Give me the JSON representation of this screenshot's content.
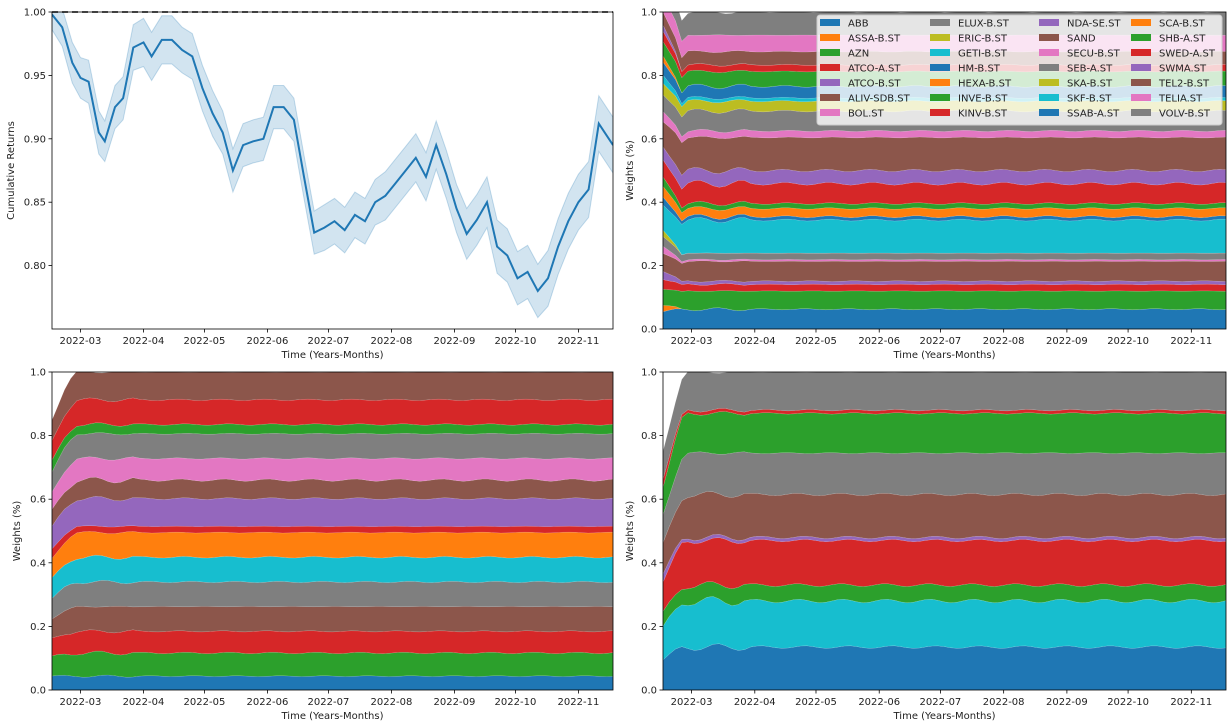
{
  "chart_data": [
    {
      "type": "line",
      "xlabel": "Time (Years-Months)",
      "ylabel": "Cumulative Returns",
      "ylim": [
        0.75,
        1.0
      ],
      "yticks": [
        "0.80",
        "0.85",
        "0.90",
        "0.95",
        "1.00"
      ],
      "xlim": [
        "2022-02-15",
        "2022-11-18"
      ],
      "xticks": [
        "2022-03",
        "2022-04",
        "2022-05",
        "2022-06",
        "2022-07",
        "2022-08",
        "2022-09",
        "2022-10",
        "2022-11"
      ],
      "reference_line": {
        "y": 1.0,
        "style": "dashed",
        "color": "#000000"
      },
      "line_color": "#1f77b4",
      "band_color": "#1f77b4",
      "series": [
        {
          "x": [
            "2022-02-15",
            "2022-02-20",
            "2022-02-25",
            "2022-03-01",
            "2022-03-05",
            "2022-03-10",
            "2022-03-13",
            "2022-03-18",
            "2022-03-22",
            "2022-03-27",
            "2022-04-01",
            "2022-04-05",
            "2022-04-10",
            "2022-04-15",
            "2022-04-20",
            "2022-04-25",
            "2022-04-30",
            "2022-05-05",
            "2022-05-10",
            "2022-05-15",
            "2022-05-20",
            "2022-05-25",
            "2022-05-30",
            "2022-06-04",
            "2022-06-09",
            "2022-06-14",
            "2022-06-19",
            "2022-06-24",
            "2022-06-29",
            "2022-07-04",
            "2022-07-09",
            "2022-07-14",
            "2022-07-19",
            "2022-07-24",
            "2022-07-29",
            "2022-08-03",
            "2022-08-08",
            "2022-08-13",
            "2022-08-18",
            "2022-08-23",
            "2022-08-28",
            "2022-09-02",
            "2022-09-07",
            "2022-09-12",
            "2022-09-17",
            "2022-09-22",
            "2022-09-27",
            "2022-10-02",
            "2022-10-07",
            "2022-10-12",
            "2022-10-17",
            "2022-10-22",
            "2022-10-27",
            "2022-11-01",
            "2022-11-06",
            "2022-11-11",
            "2022-11-18"
          ],
          "y": [
            0.998,
            0.988,
            0.96,
            0.948,
            0.945,
            0.905,
            0.898,
            0.925,
            0.932,
            0.972,
            0.976,
            0.965,
            0.978,
            0.978,
            0.97,
            0.965,
            0.94,
            0.92,
            0.905,
            0.875,
            0.895,
            0.898,
            0.9,
            0.925,
            0.925,
            0.915,
            0.87,
            0.826,
            0.83,
            0.835,
            0.828,
            0.84,
            0.835,
            0.85,
            0.855,
            0.865,
            0.875,
            0.885,
            0.87,
            0.895,
            0.872,
            0.845,
            0.825,
            0.836,
            0.85,
            0.815,
            0.808,
            0.79,
            0.795,
            0.78,
            0.79,
            0.815,
            0.835,
            0.85,
            0.86,
            0.912,
            0.895
          ],
          "band": [
            0.012,
            0.015,
            0.016,
            0.016,
            0.017,
            0.017,
            0.016,
            0.017,
            0.017,
            0.018,
            0.019,
            0.019,
            0.019,
            0.019,
            0.018,
            0.018,
            0.018,
            0.018,
            0.017,
            0.017,
            0.017,
            0.017,
            0.017,
            0.017,
            0.017,
            0.017,
            0.017,
            0.017,
            0.018,
            0.018,
            0.018,
            0.018,
            0.018,
            0.018,
            0.019,
            0.019,
            0.019,
            0.019,
            0.019,
            0.019,
            0.019,
            0.019,
            0.02,
            0.02,
            0.02,
            0.021,
            0.021,
            0.021,
            0.021,
            0.021,
            0.022,
            0.022,
            0.022,
            0.022,
            0.022,
            0.022,
            0.022
          ]
        }
      ]
    },
    {
      "type": "area",
      "stacked": true,
      "xlabel": "Time (Years-Months)",
      "ylabel": "Weights (%)",
      "ylim": [
        0.0,
        1.0
      ],
      "yticks": [
        "0.0",
        "0.2",
        "0.4",
        "0.6",
        "0.8",
        "1.0"
      ],
      "xlim": [
        "2022-02-15",
        "2022-11-18"
      ],
      "xticks": [
        "2022-03",
        "2022-04",
        "2022-05",
        "2022-06",
        "2022-07",
        "2022-08",
        "2022-09",
        "2022-10",
        "2022-11"
      ],
      "legend_position": "top-right",
      "series": [
        {
          "name": "ABB",
          "color": "#1f77b4",
          "weight": 0.06
        },
        {
          "name": "ASSA-B.ST",
          "color": "#ff7f0e",
          "weight": 0.0
        },
        {
          "name": "AZN",
          "color": "#2ca02c",
          "weight": 0.055
        },
        {
          "name": "ATCO-A.ST",
          "color": "#d62728",
          "weight": 0.02
        },
        {
          "name": "ATCO-B.ST",
          "color": "#9467bd",
          "weight": 0.01
        },
        {
          "name": "ALIV-SDB.ST",
          "color": "#8c564b",
          "weight": 0.06
        },
        {
          "name": "BOL.ST",
          "color": "#e377c2",
          "weight": 0.005
        },
        {
          "name": "ELUX-B.ST",
          "color": "#7f7f7f",
          "weight": 0.02
        },
        {
          "name": "ERIC-B.ST",
          "color": "#bcbd22",
          "weight": 0.0
        },
        {
          "name": "GETI-B.ST",
          "color": "#17becf",
          "weight": 0.1
        },
        {
          "name": "HM-B.ST",
          "color": "#1f77b4",
          "weight": 0.01
        },
        {
          "name": "HEXA-B.ST",
          "color": "#ff7f0e",
          "weight": 0.025
        },
        {
          "name": "INVE-B.ST",
          "color": "#2ca02c",
          "weight": 0.015
        },
        {
          "name": "KINV-B.ST",
          "color": "#d62728",
          "weight": 0.06
        },
        {
          "name": "NDA-SE.ST",
          "color": "#9467bd",
          "weight": 0.04
        },
        {
          "name": "SAND",
          "color": "#8c564b",
          "weight": 0.1
        },
        {
          "name": "SECU-B.ST",
          "color": "#e377c2",
          "weight": 0.02
        },
        {
          "name": "SEB-A.ST",
          "color": "#7f7f7f",
          "weight": 0.06
        },
        {
          "name": "SKA-B.ST",
          "color": "#bcbd22",
          "weight": 0.03
        },
        {
          "name": "SKF-B.ST",
          "color": "#17becf",
          "weight": 0.01
        },
        {
          "name": "SSAB-A.ST",
          "color": "#1f77b4",
          "weight": 0.035
        },
        {
          "name": "SCA-B.ST",
          "color": "#ff7f0e",
          "weight": 0.0
        },
        {
          "name": "SHB-A.ST",
          "color": "#2ca02c",
          "weight": 0.045
        },
        {
          "name": "SWED-A.ST",
          "color": "#d62728",
          "weight": 0.02
        },
        {
          "name": "SWMA.ST",
          "color": "#9467bd",
          "weight": 0.0
        },
        {
          "name": "TEL2-B.ST",
          "color": "#8c564b",
          "weight": 0.04
        },
        {
          "name": "TELIA.ST",
          "color": "#e377c2",
          "weight": 0.05
        },
        {
          "name": "VOLV-B.ST",
          "color": "#7f7f7f",
          "weight": 0.07
        }
      ]
    },
    {
      "type": "area",
      "stacked": true,
      "xlabel": "Time (Years-Months)",
      "ylabel": "Weights (%)",
      "ylim": [
        0.0,
        1.0
      ],
      "yticks": [
        "0.0",
        "0.2",
        "0.4",
        "0.6",
        "0.8",
        "1.0"
      ],
      "xlim": [
        "2022-02-15",
        "2022-11-18"
      ],
      "xticks": [
        "2022-03",
        "2022-04",
        "2022-05",
        "2022-06",
        "2022-07",
        "2022-08",
        "2022-09",
        "2022-10",
        "2022-11"
      ],
      "series": [
        {
          "name": "ABB",
          "color": "#1f77b4",
          "weight": 0.045
        },
        {
          "name": "AZN",
          "color": "#2ca02c",
          "weight": 0.075
        },
        {
          "name": "ATCO-A.ST",
          "color": "#d62728",
          "weight": 0.07
        },
        {
          "name": "ALIV-SDB.ST",
          "color": "#8c564b",
          "weight": 0.08
        },
        {
          "name": "ELUX-B.ST",
          "color": "#7f7f7f",
          "weight": 0.08
        },
        {
          "name": "GETI-B.ST",
          "color": "#17becf",
          "weight": 0.08
        },
        {
          "name": "HEXA-B.ST",
          "color": "#ff7f0e",
          "weight": 0.08
        },
        {
          "name": "KINV-B.ST",
          "color": "#d62728",
          "weight": 0.02
        },
        {
          "name": "NDA-SE.ST",
          "color": "#9467bd",
          "weight": 0.09
        },
        {
          "name": "SAND",
          "color": "#8c564b",
          "weight": 0.06
        },
        {
          "name": "SECU-B.ST",
          "color": "#e377c2",
          "weight": 0.07
        },
        {
          "name": "SEB-A.ST",
          "color": "#7f7f7f",
          "weight": 0.08
        },
        {
          "name": "SHB-A.ST",
          "color": "#2ca02c",
          "weight": 0.03
        },
        {
          "name": "SWED-A.ST",
          "color": "#d62728",
          "weight": 0.08
        },
        {
          "name": "TEL2-B.ST",
          "color": "#8c564b",
          "weight": 0.09
        }
      ]
    },
    {
      "type": "area",
      "stacked": true,
      "xlabel": "Time (Years-Months)",
      "ylabel": "Weights (%)",
      "ylim": [
        0.0,
        1.0
      ],
      "yticks": [
        "0.0",
        "0.2",
        "0.4",
        "0.6",
        "0.8",
        "1.0"
      ],
      "xlim": [
        "2022-02-15",
        "2022-11-18"
      ],
      "xticks": [
        "2022-03",
        "2022-04",
        "2022-05",
        "2022-06",
        "2022-07",
        "2022-08",
        "2022-09",
        "2022-10",
        "2022-11"
      ],
      "series": [
        {
          "name": "ABB",
          "color": "#1f77b4",
          "weight": 0.135
        },
        {
          "name": "GETI-B.ST",
          "color": "#17becf",
          "weight": 0.145
        },
        {
          "name": "INVE-B.ST",
          "color": "#2ca02c",
          "weight": 0.05
        },
        {
          "name": "KINV-B.ST",
          "color": "#d62728",
          "weight": 0.14
        },
        {
          "name": "NDA-SE.ST",
          "color": "#9467bd",
          "weight": 0.01
        },
        {
          "name": "SAND",
          "color": "#8c564b",
          "weight": 0.135
        },
        {
          "name": "SEB-A.ST",
          "color": "#7f7f7f",
          "weight": 0.13
        },
        {
          "name": "SHB-A.ST",
          "color": "#2ca02c",
          "weight": 0.125
        },
        {
          "name": "SWED-A.ST",
          "color": "#d62728",
          "weight": 0.01
        },
        {
          "name": "VOLV-B.ST",
          "color": "#7f7f7f",
          "weight": 0.12
        }
      ]
    }
  ]
}
